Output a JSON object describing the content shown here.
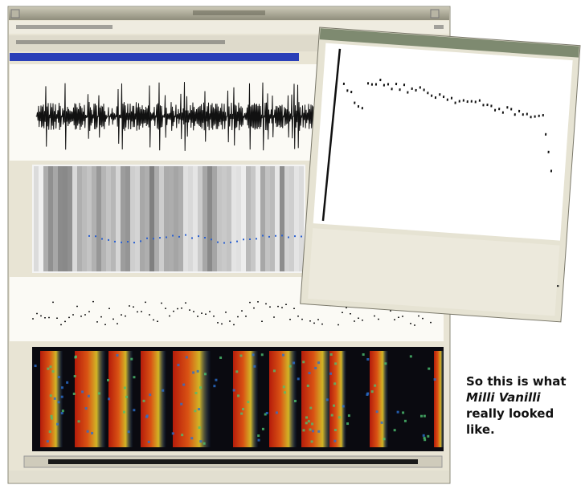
{
  "caption": {
    "before": "So this is what ",
    "emphasis": "Milli Vanilli",
    "after": " really looked like."
  }
}
